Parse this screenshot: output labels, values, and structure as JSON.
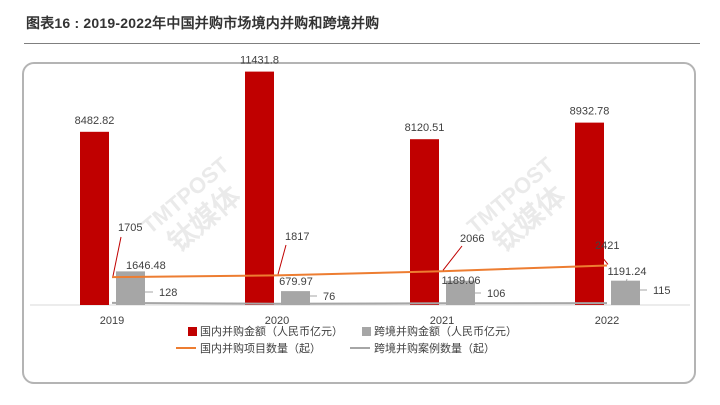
{
  "page": {
    "title": "图表16 : 2019-2022年中国并购市场境内并购和跨境并购"
  },
  "watermark": {
    "brand": "TMTPOST",
    "name": "钛媒体"
  },
  "chart_data": {
    "type": "bar",
    "categories": [
      "2019",
      "2020",
      "2021",
      "2022"
    ],
    "series": [
      {
        "name": "国内并购金额（人民币亿元）",
        "kind": "bar",
        "color": "#c00000",
        "values": [
          8482.82,
          11431.8,
          8120.51,
          8932.78
        ],
        "labels": [
          "8482.82",
          "11431.8",
          "8120.51",
          "8932.78"
        ]
      },
      {
        "name": "跨境并购金额（人民币亿元）",
        "kind": "bar",
        "color": "#a6a6a6",
        "values": [
          1646.48,
          679.97,
          1189.06,
          1191.24
        ],
        "labels": [
          "1646.48",
          "679.97",
          "1189.06",
          "1191.24"
        ]
      },
      {
        "name": "国内并购项目数量（起）",
        "kind": "line",
        "color": "#ed7d31",
        "values": [
          1705,
          1817,
          2066,
          2421
        ],
        "labels": [
          "1705",
          "1817",
          "2066",
          "2421"
        ]
      },
      {
        "name": "跨境并购案例数量（起）",
        "kind": "line",
        "color": "#a6a6a6",
        "values": [
          128,
          76,
          106,
          115
        ],
        "labels": [
          "128",
          "76",
          "106",
          "115"
        ]
      }
    ],
    "ylim": [
      0,
      12000
    ],
    "y2lim": [
      0,
      15000
    ],
    "grid": false,
    "legend_position": "bottom"
  }
}
